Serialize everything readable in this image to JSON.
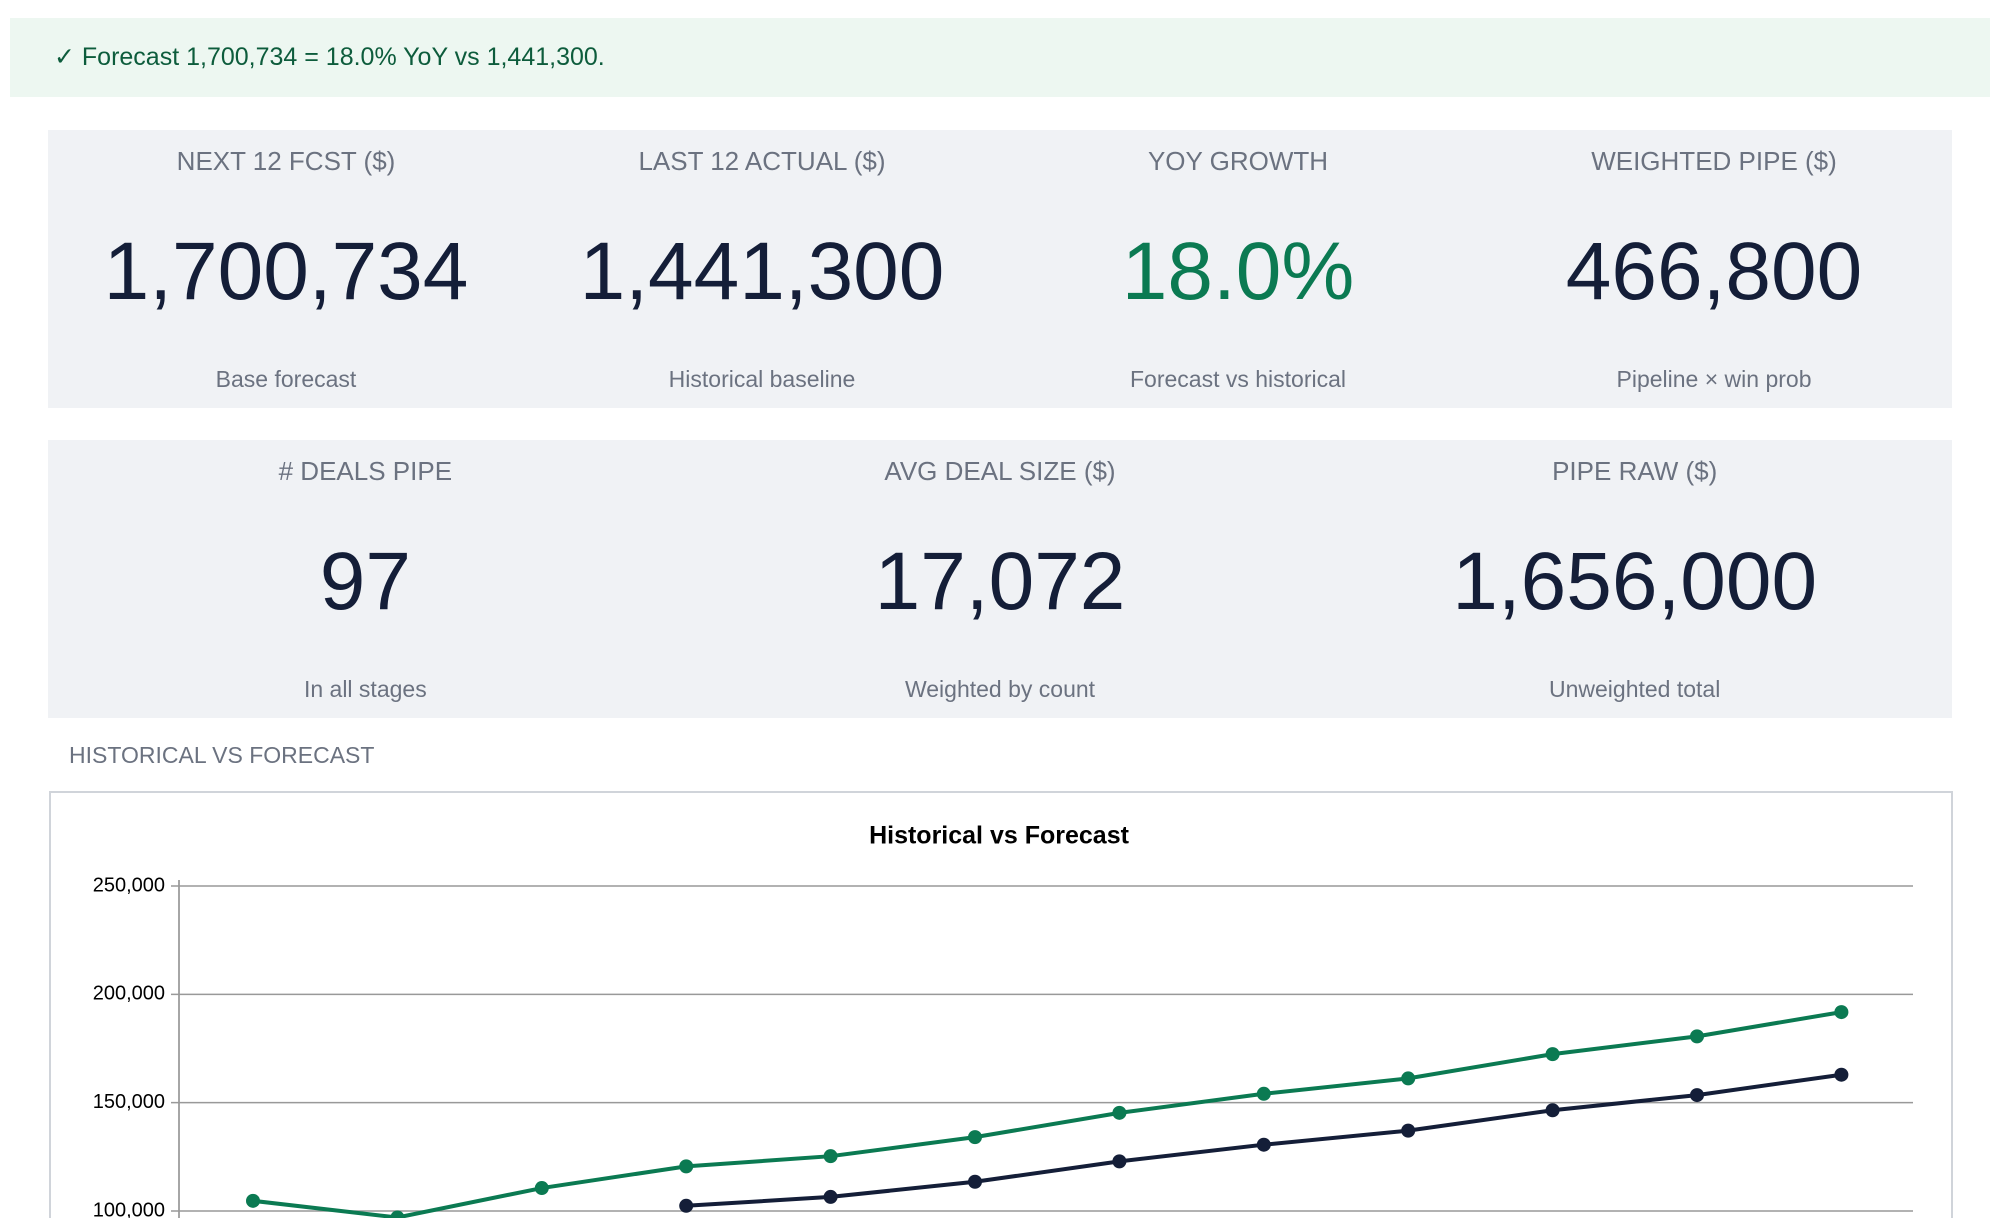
{
  "banner": {
    "text": "✓ Forecast 1,700,734 = 18.0% YoY vs 1,441,300."
  },
  "kpi_rows": [
    [
      {
        "label": "NEXT 12 FCST ($)",
        "value": "1,700,734",
        "note": "Base forecast"
      },
      {
        "label": "LAST 12 ACTUAL ($)",
        "value": "1,441,300",
        "note": "Historical baseline"
      },
      {
        "label": "YOY GROWTH",
        "value": "18.0%",
        "note": "Forecast vs historical"
      },
      {
        "label": "WEIGHTED PIPE ($)",
        "value": "466,800",
        "note": "Pipeline × win prob"
      }
    ],
    [
      {
        "label": "# DEALS PIPE",
        "value": "97",
        "note": "In all stages"
      },
      {
        "label": "AVG DEAL SIZE ($)",
        "value": "17,072",
        "note": "Weighted by count"
      },
      {
        "label": "PIPE RAW ($)",
        "value": "1,656,000",
        "note": "Unweighted total"
      }
    ]
  ],
  "section_title": "HISTORICAL VS FORECAST",
  "chart_data": {
    "type": "line",
    "title": "Historical vs Forecast",
    "series": [
      {
        "color": "#0b7a52",
        "values": [
          104700,
          97000,
          110600,
          120600,
          125300,
          134100,
          145300,
          154100,
          161200,
          172400,
          180600,
          191800
        ]
      },
      {
        "color": "#141e38",
        "values": [
          null,
          null,
          null,
          102400,
          106500,
          113500,
          122900,
          130600,
          137100,
          146500,
          153500,
          162900
        ]
      }
    ],
    "ylim": [
      100000,
      250000
    ],
    "yticks": [
      {
        "value": 100000,
        "label": "100,000"
      },
      {
        "value": 150000,
        "label": "150,000"
      },
      {
        "value": 200000,
        "label": "200,000"
      },
      {
        "value": 250000,
        "label": "250,000"
      }
    ],
    "grid": true
  }
}
